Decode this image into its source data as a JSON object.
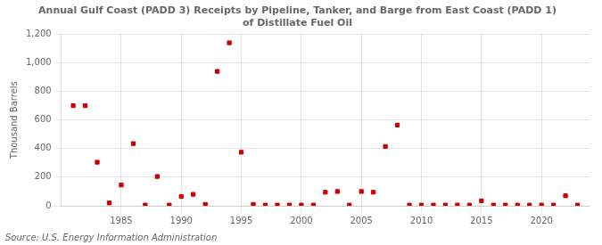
{
  "chart_data": {
    "type": "scatter",
    "title": "Annual Gulf Coast (PADD 3) Receipts by Pipeline, Tanker, and Barge from East Coast (PADD 1)\nof Distillate Fuel Oil",
    "y_label": "Thousand Barrels",
    "annotation": "Source: U.S. Energy Information Administration",
    "x": [
      1981,
      1982,
      1983,
      1984,
      1985,
      1986,
      1987,
      1988,
      1989,
      1990,
      1991,
      1992,
      1993,
      1994,
      1995,
      1996,
      1997,
      1998,
      1999,
      2000,
      2001,
      2002,
      2003,
      2004,
      2005,
      2006,
      2007,
      2008,
      2009,
      2010,
      2011,
      2012,
      2013,
      2014,
      2015,
      2016,
      2017,
      2018,
      2019,
      2020,
      2021,
      2022,
      2023
    ],
    "values": [
      700,
      700,
      305,
      20,
      145,
      435,
      5,
      205,
      5,
      65,
      80,
      10,
      940,
      1140,
      375,
      10,
      5,
      5,
      5,
      5,
      5,
      95,
      100,
      5,
      100,
      95,
      415,
      565,
      5,
      5,
      5,
      5,
      5,
      5,
      35,
      5,
      5,
      5,
      5,
      5,
      5,
      70,
      5
    ],
    "color": "#cc0000",
    "marker": "square",
    "xlim": [
      1980,
      2024
    ],
    "xticks": [
      1985,
      1990,
      1995,
      2000,
      2005,
      2010,
      2015,
      2020
    ],
    "ylim": [
      0,
      1200
    ],
    "yticks": [
      0,
      200,
      400,
      600,
      800,
      {
        "value": 1000,
        "label": "1,000"
      },
      {
        "value": 1200,
        "label": "1,200"
      }
    ],
    "grid": true
  }
}
